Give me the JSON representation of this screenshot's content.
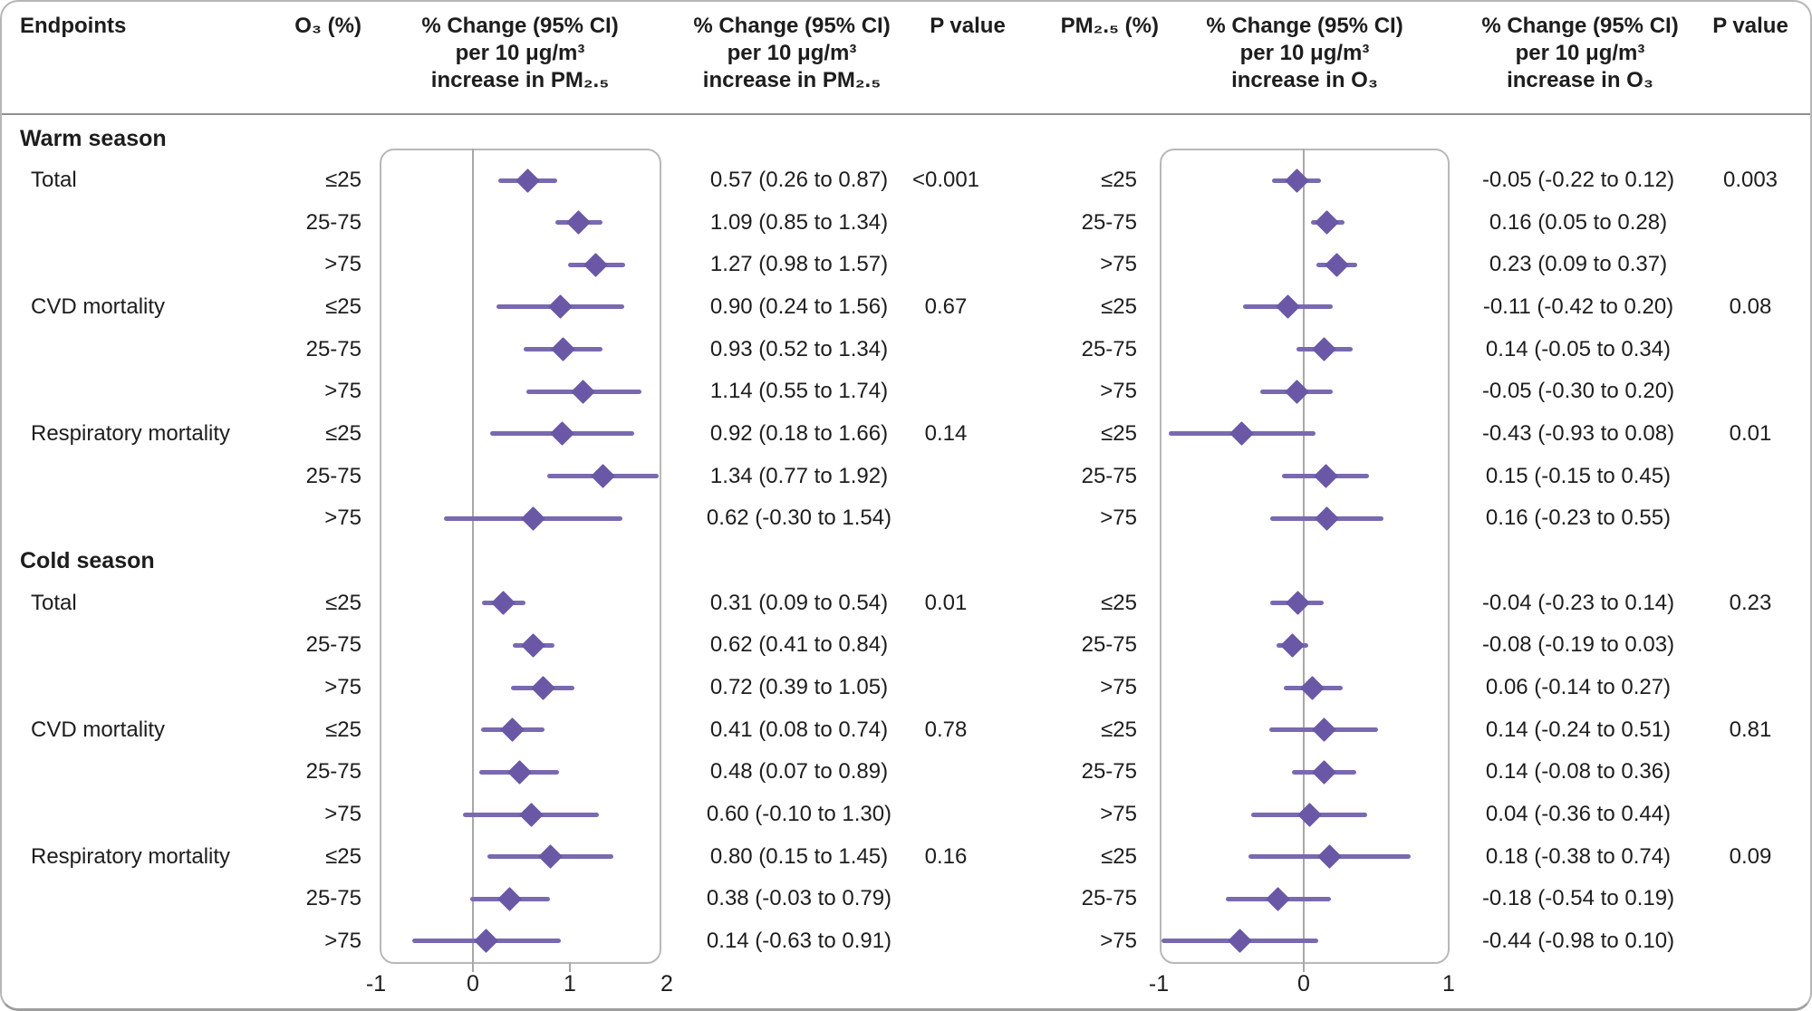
{
  "header": {
    "endpoints": "Endpoints",
    "o3": "O₃ (%)",
    "left_plot": "% Change (95% CI)\nper 10 μg/m³\nincrease in PM₂.₅",
    "left_text": "% Change (95% CI)\nper 10 μg/m³\nincrease in PM₂.₅",
    "p_left": "P value",
    "pm25": "PM₂.₅ (%)",
    "right_plot": "% Change (95% CI)\nper 10 μg/m³\nincrease in O₃",
    "right_text": "% Change (95% CI)\nper 10 μg/m³\nincrease in O₃",
    "p_right": "P value"
  },
  "colors": {
    "diamond": "#6a58a6",
    "ci_line": "#7969b1",
    "grid": "#a8a8a8",
    "box_border": "#b8b8b8",
    "text": "#1d1d1d"
  },
  "chart_data": [
    {
      "type": "forest",
      "panel": "left",
      "title": "% Change (95% CI) per 10 μg/m³ increase in PM₂.₅ by O₃ percentile",
      "group_header": "O₃ (%)",
      "xlim": [
        -1,
        2
      ],
      "xticks": [
        "-1",
        "0",
        "1",
        "2"
      ],
      "zero_reference_line": true,
      "sections": [
        {
          "label": "Warm season",
          "rows": [
            {
              "endpoint": "Total",
              "group": "≤25",
              "est": 0.57,
              "ci": [
                0.26,
                0.87
              ],
              "text": "0.57 (0.26 to 0.87)",
              "p": "<0.001"
            },
            {
              "endpoint": "",
              "group": "25-75",
              "est": 1.09,
              "ci": [
                0.85,
                1.34
              ],
              "text": "1.09 (0.85 to 1.34)",
              "p": ""
            },
            {
              "endpoint": "",
              "group": ">75",
              "est": 1.27,
              "ci": [
                0.98,
                1.57
              ],
              "text": "1.27 (0.98 to 1.57)",
              "p": ""
            },
            {
              "endpoint": "CVD mortality",
              "group": "≤25",
              "est": 0.9,
              "ci": [
                0.24,
                1.56
              ],
              "text": "0.90 (0.24 to 1.56)",
              "p": "0.67"
            },
            {
              "endpoint": "",
              "group": "25-75",
              "est": 0.93,
              "ci": [
                0.52,
                1.34
              ],
              "text": "0.93 (0.52 to 1.34)",
              "p": ""
            },
            {
              "endpoint": "",
              "group": ">75",
              "est": 1.14,
              "ci": [
                0.55,
                1.74
              ],
              "text": "1.14 (0.55 to 1.74)",
              "p": ""
            },
            {
              "endpoint": "Respiratory mortality",
              "group": "≤25",
              "est": 0.92,
              "ci": [
                0.18,
                1.66
              ],
              "text": "0.92 (0.18 to 1.66)",
              "p": "0.14"
            },
            {
              "endpoint": "",
              "group": "25-75",
              "est": 1.34,
              "ci": [
                0.77,
                1.92
              ],
              "text": "1.34 (0.77 to 1.92)",
              "p": ""
            },
            {
              "endpoint": "",
              "group": ">75",
              "est": 0.62,
              "ci": [
                -0.3,
                1.54
              ],
              "text": "0.62 (-0.30 to 1.54)",
              "p": ""
            }
          ]
        },
        {
          "label": "Cold season",
          "rows": [
            {
              "endpoint": "Total",
              "group": "≤25",
              "est": 0.31,
              "ci": [
                0.09,
                0.54
              ],
              "text": "0.31 (0.09 to 0.54)",
              "p": "0.01"
            },
            {
              "endpoint": "",
              "group": "25-75",
              "est": 0.62,
              "ci": [
                0.41,
                0.84
              ],
              "text": "0.62 (0.41 to 0.84)",
              "p": ""
            },
            {
              "endpoint": "",
              "group": ">75",
              "est": 0.72,
              "ci": [
                0.39,
                1.05
              ],
              "text": "0.72 (0.39 to 1.05)",
              "p": ""
            },
            {
              "endpoint": "CVD mortality",
              "group": "≤25",
              "est": 0.41,
              "ci": [
                0.08,
                0.74
              ],
              "text": "0.41 (0.08 to 0.74)",
              "p": "0.78"
            },
            {
              "endpoint": "",
              "group": "25-75",
              "est": 0.48,
              "ci": [
                0.07,
                0.89
              ],
              "text": "0.48 (0.07 to 0.89)",
              "p": ""
            },
            {
              "endpoint": "",
              "group": ">75",
              "est": 0.6,
              "ci": [
                -0.1,
                1.3
              ],
              "text": "0.60 (-0.10 to 1.30)",
              "p": ""
            },
            {
              "endpoint": "Respiratory mortality",
              "group": "≤25",
              "est": 0.8,
              "ci": [
                0.15,
                1.45
              ],
              "text": "0.80 (0.15 to 1.45)",
              "p": "0.16"
            },
            {
              "endpoint": "",
              "group": "25-75",
              "est": 0.38,
              "ci": [
                -0.03,
                0.79
              ],
              "text": "0.38 (-0.03 to 0.79)",
              "p": ""
            },
            {
              "endpoint": "",
              "group": ">75",
              "est": 0.14,
              "ci": [
                -0.63,
                0.91
              ],
              "text": "0.14 (-0.63 to 0.91)",
              "p": ""
            }
          ]
        }
      ]
    },
    {
      "type": "forest",
      "panel": "right",
      "title": "% Change (95% CI) per 10 μg/m³ increase in O₃ by PM₂.₅ percentile",
      "group_header": "PM₂.₅ (%)",
      "xlim": [
        -1,
        1
      ],
      "xticks": [
        "-1",
        "0",
        "1"
      ],
      "zero_reference_line": true,
      "sections": [
        {
          "label": "Warm season",
          "rows": [
            {
              "endpoint": "Total",
              "group": "≤25",
              "est": -0.05,
              "ci": [
                -0.22,
                0.12
              ],
              "text": "-0.05 (-0.22 to 0.12)",
              "p": "0.003"
            },
            {
              "endpoint": "",
              "group": "25-75",
              "est": 0.16,
              "ci": [
                0.05,
                0.28
              ],
              "text": "0.16 (0.05 to 0.28)",
              "p": ""
            },
            {
              "endpoint": "",
              "group": ">75",
              "est": 0.23,
              "ci": [
                0.09,
                0.37
              ],
              "text": "0.23 (0.09 to 0.37)",
              "p": ""
            },
            {
              "endpoint": "CVD mortality",
              "group": "≤25",
              "est": -0.11,
              "ci": [
                -0.42,
                0.2
              ],
              "text": "-0.11 (-0.42 to 0.20)",
              "p": "0.08"
            },
            {
              "endpoint": "",
              "group": "25-75",
              "est": 0.14,
              "ci": [
                -0.05,
                0.34
              ],
              "text": "0.14 (-0.05 to 0.34)",
              "p": ""
            },
            {
              "endpoint": "",
              "group": ">75",
              "est": -0.05,
              "ci": [
                -0.3,
                0.2
              ],
              "text": "-0.05 (-0.30 to 0.20)",
              "p": ""
            },
            {
              "endpoint": "Respiratory mortality",
              "group": "≤25",
              "est": -0.43,
              "ci": [
                -0.93,
                0.08
              ],
              "text": "-0.43 (-0.93 to 0.08)",
              "p": "0.01"
            },
            {
              "endpoint": "",
              "group": "25-75",
              "est": 0.15,
              "ci": [
                -0.15,
                0.45
              ],
              "text": "0.15 (-0.15 to 0.45)",
              "p": ""
            },
            {
              "endpoint": "",
              "group": ">75",
              "est": 0.16,
              "ci": [
                -0.23,
                0.55
              ],
              "text": "0.16 (-0.23 to 0.55)",
              "p": ""
            }
          ]
        },
        {
          "label": "Cold season",
          "rows": [
            {
              "endpoint": "Total",
              "group": "≤25",
              "est": -0.04,
              "ci": [
                -0.23,
                0.14
              ],
              "text": "-0.04 (-0.23 to 0.14)",
              "p": "0.23"
            },
            {
              "endpoint": "",
              "group": "25-75",
              "est": -0.08,
              "ci": [
                -0.19,
                0.03
              ],
              "text": "-0.08 (-0.19 to 0.03)",
              "p": ""
            },
            {
              "endpoint": "",
              "group": ">75",
              "est": 0.06,
              "ci": [
                -0.14,
                0.27
              ],
              "text": "0.06 (-0.14 to 0.27)",
              "p": ""
            },
            {
              "endpoint": "CVD mortality",
              "group": "≤25",
              "est": 0.14,
              "ci": [
                -0.24,
                0.51
              ],
              "text": "0.14 (-0.24 to 0.51)",
              "p": "0.81"
            },
            {
              "endpoint": "",
              "group": "25-75",
              "est": 0.14,
              "ci": [
                -0.08,
                0.36
              ],
              "text": "0.14 (-0.08 to 0.36)",
              "p": ""
            },
            {
              "endpoint": "",
              "group": ">75",
              "est": 0.04,
              "ci": [
                -0.36,
                0.44
              ],
              "text": "0.04 (-0.36 to 0.44)",
              "p": ""
            },
            {
              "endpoint": "Respiratory mortality",
              "group": "≤25",
              "est": 0.18,
              "ci": [
                -0.38,
                0.74
              ],
              "text": "0.18 (-0.38 to 0.74)",
              "p": "0.09"
            },
            {
              "endpoint": "",
              "group": "25-75",
              "est": -0.18,
              "ci": [
                -0.54,
                0.19
              ],
              "text": "-0.18 (-0.54 to 0.19)",
              "p": ""
            },
            {
              "endpoint": "",
              "group": ">75",
              "est": -0.44,
              "ci": [
                -0.98,
                0.1
              ],
              "text": "-0.44 (-0.98 to 0.10)",
              "p": ""
            }
          ]
        }
      ]
    }
  ]
}
